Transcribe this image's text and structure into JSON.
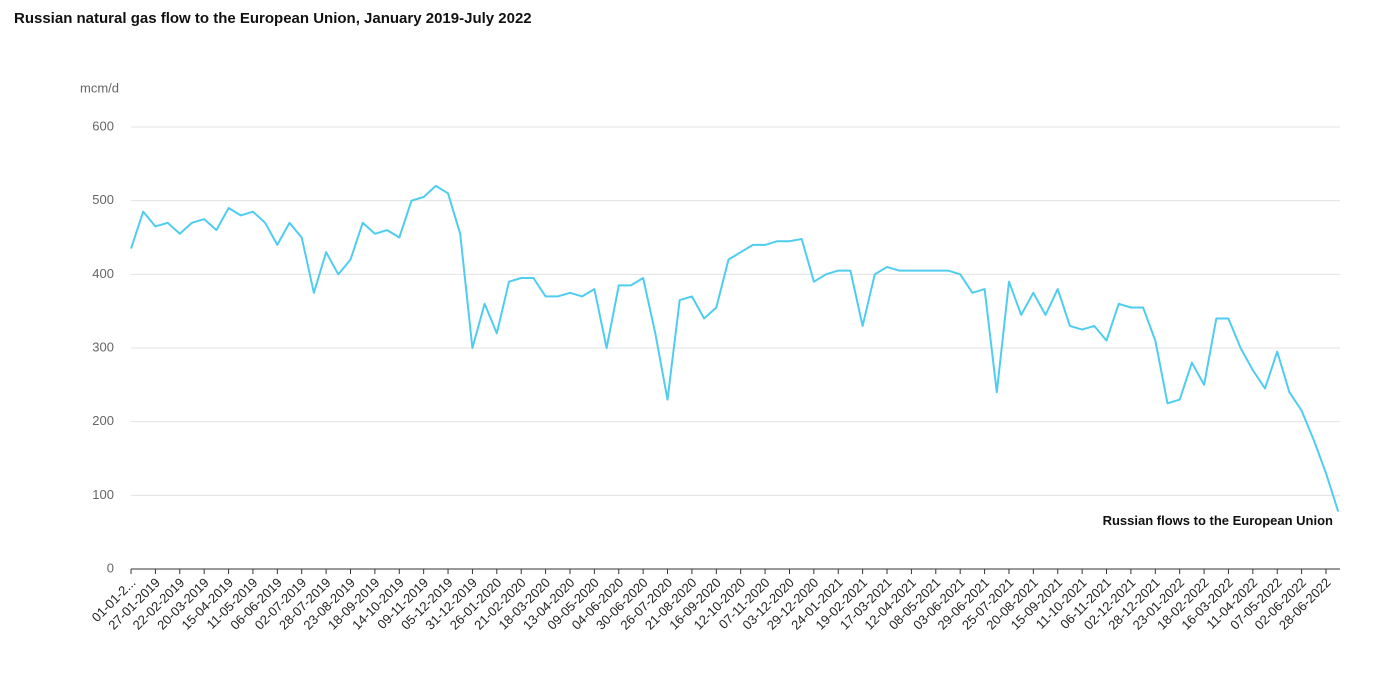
{
  "chart_data": {
    "type": "line",
    "title": "Russian natural gas flow to the European Union, January 2019-July 2022",
    "y_label": "mcm/d",
    "categories": [
      "01-01-2...",
      null,
      "27-01-2019",
      null,
      "22-02-2019",
      null,
      "20-03-2019",
      null,
      "15-04-2019",
      null,
      "11-05-2019",
      null,
      "06-06-2019",
      null,
      "02-07-2019",
      null,
      "28-07-2019",
      null,
      "23-08-2019",
      null,
      "18-09-2019",
      null,
      "14-10-2019",
      null,
      "09-11-2019",
      null,
      "05-12-2019",
      null,
      "31-12-2019",
      null,
      "26-01-2020",
      null,
      "21-02-2020",
      null,
      "18-03-2020",
      null,
      "13-04-2020",
      null,
      "09-05-2020",
      null,
      "04-06-2020",
      null,
      "30-06-2020",
      null,
      "26-07-2020",
      null,
      "21-08-2020",
      null,
      "16-09-2020",
      null,
      "12-10-2020",
      null,
      "07-11-2020",
      null,
      "03-12-2020",
      null,
      "29-12-2020",
      null,
      "24-01-2021",
      null,
      "19-02-2021",
      null,
      "17-03-2021",
      null,
      "12-04-2021",
      null,
      "08-05-2021",
      null,
      "03-06-2021",
      null,
      "29-06-2021",
      null,
      "25-07-2021",
      null,
      "20-08-2021",
      null,
      "15-09-2021",
      null,
      "11-10-2021",
      null,
      "06-11-2021",
      null,
      "02-12-2021",
      null,
      "28-12-2021",
      null,
      "23-01-2022",
      null,
      "18-02-2022",
      null,
      "16-03-2022",
      null,
      "11-04-2022",
      null,
      "07-05-2022",
      null,
      "02-06-2022",
      null,
      "28-06-2022",
      null
    ],
    "series": [
      {
        "name": "Russian flows to the European Union",
        "color": "#4fcdf0",
        "values": [
          435,
          485,
          465,
          470,
          455,
          470,
          475,
          460,
          490,
          480,
          485,
          470,
          440,
          470,
          450,
          375,
          430,
          400,
          420,
          470,
          455,
          460,
          450,
          500,
          505,
          520,
          510,
          455,
          300,
          360,
          320,
          390,
          395,
          395,
          370,
          370,
          375,
          370,
          380,
          300,
          385,
          385,
          395,
          320,
          230,
          365,
          370,
          340,
          355,
          420,
          430,
          440,
          440,
          445,
          445,
          448,
          390,
          400,
          405,
          405,
          330,
          400,
          410,
          405,
          405,
          405,
          405,
          405,
          400,
          375,
          380,
          240,
          390,
          345,
          375,
          345,
          380,
          330,
          325,
          330,
          310,
          360,
          355,
          355,
          310,
          225,
          230,
          280,
          250,
          340,
          340,
          300,
          270,
          245,
          295,
          240,
          215,
          175,
          130,
          78
        ]
      }
    ],
    "ylim": [
      0,
      600
    ],
    "yticks": [
      0,
      100,
      200,
      300,
      400,
      500,
      600
    ],
    "grid": true
  }
}
